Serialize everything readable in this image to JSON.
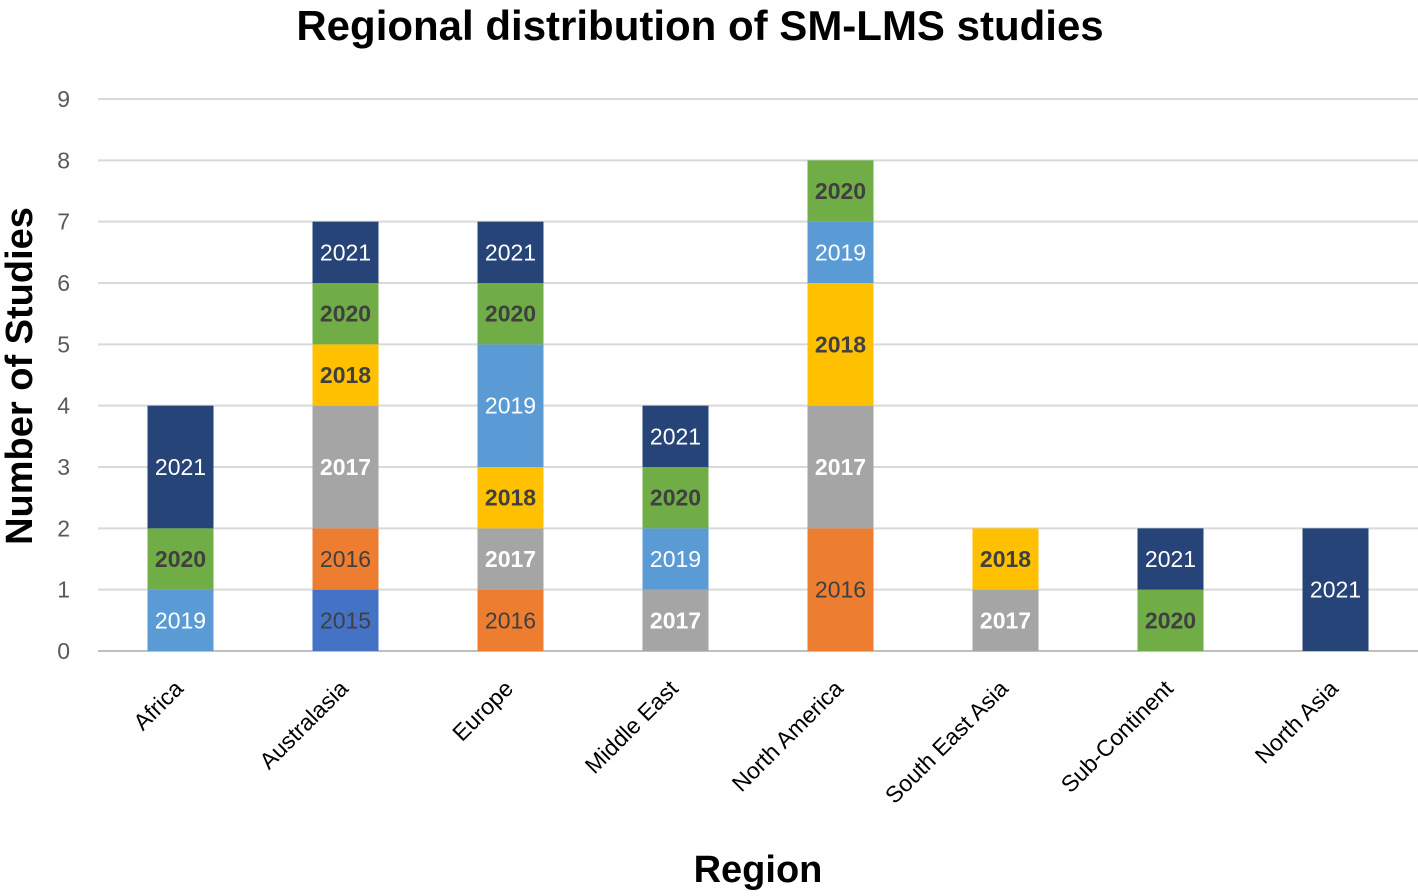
{
  "chart_data": {
    "type": "bar",
    "stacked": true,
    "title": "Regional distribution of SM-LMS studies",
    "xlabel": "Region",
    "ylabel": "Number of Studies",
    "ylim": [
      0,
      9
    ],
    "yticks": [
      0,
      1,
      2,
      3,
      4,
      5,
      6,
      7,
      8,
      9
    ],
    "grid": true,
    "legend": "none",
    "categories": [
      "Africa",
      "Australasia",
      "Europe",
      "Middle East",
      "North America",
      "South East Asia",
      "Sub-Continent",
      "North Asia"
    ],
    "series": [
      {
        "name": "2015",
        "color": "#4472C4",
        "label_color": "#404040",
        "label_bold": false,
        "values": [
          0,
          1,
          0,
          0,
          0,
          0,
          0,
          0
        ]
      },
      {
        "name": "2016",
        "color": "#ED7D31",
        "label_color": "#404040",
        "label_bold": false,
        "values": [
          0,
          1,
          1,
          0,
          2,
          0,
          0,
          0
        ]
      },
      {
        "name": "2017",
        "color": "#A5A5A5",
        "label_color": "#FFFFFF",
        "label_bold": true,
        "values": [
          0,
          2,
          1,
          1,
          2,
          1,
          0,
          0
        ]
      },
      {
        "name": "2018",
        "color": "#FFC000",
        "label_color": "#404040",
        "label_bold": true,
        "values": [
          0,
          1,
          1,
          0,
          2,
          1,
          0,
          0
        ]
      },
      {
        "name": "2019",
        "color": "#5B9BD5",
        "label_color": "#FFFFFF",
        "label_bold": false,
        "values": [
          1,
          0,
          2,
          1,
          1,
          0,
          0,
          0
        ]
      },
      {
        "name": "2020",
        "color": "#70AD47",
        "label_color": "#404040",
        "label_bold": true,
        "values": [
          1,
          1,
          1,
          1,
          1,
          0,
          1,
          0
        ]
      },
      {
        "name": "2021",
        "color": "#264478",
        "label_color": "#FFFFFF",
        "label_bold": false,
        "values": [
          2,
          1,
          1,
          1,
          0,
          0,
          1,
          2
        ]
      }
    ]
  }
}
